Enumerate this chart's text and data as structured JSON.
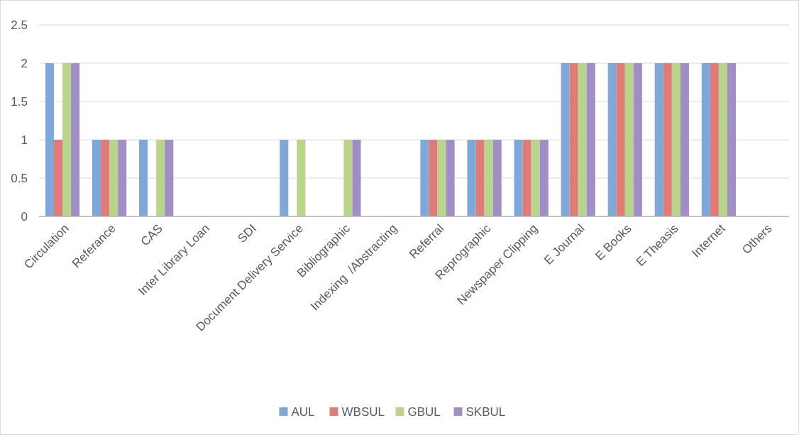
{
  "chart_data": {
    "type": "bar",
    "categories": [
      "Circulation",
      "Referance",
      "CAS",
      "Inter Library Loan",
      "SDI",
      "Document Delivery Service",
      "Bibliographic",
      "Indexing  /Abstracting",
      "Referral",
      "Reprographic",
      "Newspaper Clipping",
      "E Journal",
      "E Books",
      "E Theasis",
      "Internet",
      "Others"
    ],
    "series": [
      {
        "name": "AUL",
        "color": "#7fa7d7",
        "values": [
          2,
          1,
          1,
          0,
          0,
          1,
          0,
          0,
          1,
          1,
          1,
          2,
          2,
          2,
          2,
          0
        ]
      },
      {
        "name": "WBSUL",
        "color": "#df7b78",
        "values": [
          1,
          1,
          0,
          0,
          0,
          0,
          0,
          0,
          1,
          1,
          1,
          2,
          2,
          2,
          2,
          0
        ]
      },
      {
        "name": "GBUL",
        "color": "#b9d48b",
        "values": [
          2,
          1,
          1,
          0,
          0,
          1,
          1,
          0,
          1,
          1,
          1,
          2,
          2,
          2,
          2,
          0
        ]
      },
      {
        "name": "SKBUL",
        "color": "#a18ec5",
        "values": [
          2,
          1,
          1,
          0,
          0,
          0,
          1,
          0,
          1,
          1,
          1,
          2,
          2,
          2,
          2,
          0
        ]
      }
    ],
    "ylim": [
      0,
      2.5
    ],
    "yticks": [
      0,
      0.5,
      1,
      1.5,
      2,
      2.5
    ],
    "grid": "y",
    "legend": "bottom"
  }
}
